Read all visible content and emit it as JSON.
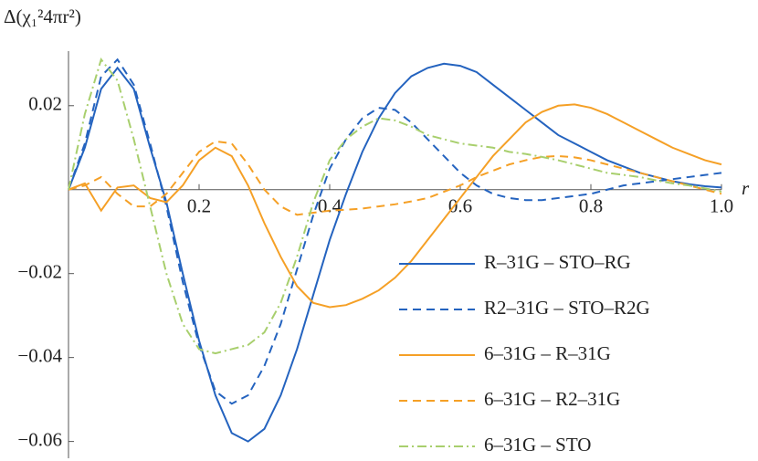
{
  "chart_data": {
    "type": "line",
    "y_label": "Δ(χ₁²4πr²)",
    "x_label": "r",
    "x": [
      0,
      0.025,
      0.05,
      0.075,
      0.1,
      0.125,
      0.15,
      0.175,
      0.2,
      0.225,
      0.25,
      0.275,
      0.3,
      0.325,
      0.35,
      0.375,
      0.4,
      0.425,
      0.45,
      0.475,
      0.5,
      0.525,
      0.55,
      0.575,
      0.6,
      0.625,
      0.65,
      0.675,
      0.7,
      0.725,
      0.75,
      0.775,
      0.8,
      0.825,
      0.85,
      0.875,
      0.9,
      0.925,
      0.95,
      0.975,
      1
    ],
    "series": [
      {
        "name": "R–31G – STO–RG",
        "color": "#2463bf",
        "style": "solid",
        "values": [
          0,
          0.01,
          0.024,
          0.029,
          0.024,
          0.01,
          -0.003,
          -0.02,
          -0.036,
          -0.049,
          -0.058,
          -0.06,
          -0.057,
          -0.049,
          -0.038,
          -0.025,
          -0.012,
          -0.001,
          0.009,
          0.017,
          0.023,
          0.027,
          0.029,
          0.03,
          0.0295,
          0.028,
          0.025,
          0.022,
          0.019,
          0.016,
          0.013,
          0.011,
          0.009,
          0.007,
          0.0055,
          0.004,
          0.003,
          0.002,
          0.0013,
          0.0008,
          0.0005
        ]
      },
      {
        "name": "R2–31G – STO–R2G",
        "color": "#2463bf",
        "style": "dashed",
        "values": [
          0,
          0.011,
          0.027,
          0.031,
          0.025,
          0.011,
          -0.004,
          -0.022,
          -0.037,
          -0.048,
          -0.051,
          -0.049,
          -0.042,
          -0.032,
          -0.019,
          -0.006,
          0.005,
          0.012,
          0.017,
          0.0195,
          0.019,
          0.016,
          0.012,
          0.008,
          0.004,
          0.001,
          -0.001,
          -0.002,
          -0.0025,
          -0.0025,
          -0.002,
          -0.0015,
          -0.001,
          0,
          0.001,
          0.0015,
          0.002,
          0.0025,
          0.003,
          0.0035,
          0.004
        ]
      },
      {
        "name": "6–31G – R–31G",
        "color": "#f5a026",
        "style": "solid",
        "values": [
          0,
          0.0015,
          -0.005,
          0.0005,
          0.001,
          -0.002,
          -0.003,
          0.001,
          0.007,
          0.01,
          0.008,
          0.001,
          -0.008,
          -0.016,
          -0.023,
          -0.027,
          -0.028,
          -0.0275,
          -0.026,
          -0.024,
          -0.021,
          -0.017,
          -0.012,
          -0.007,
          -0.002,
          0.003,
          0.008,
          0.012,
          0.016,
          0.0185,
          0.02,
          0.0203,
          0.0195,
          0.018,
          0.016,
          0.014,
          0.012,
          0.01,
          0.0085,
          0.007,
          0.006
        ]
      },
      {
        "name": "6–31G – R2–31G",
        "color": "#f5a026",
        "style": "dashed",
        "values": [
          0,
          0.001,
          0.003,
          -0.001,
          -0.004,
          -0.004,
          -0.001,
          0.004,
          0.009,
          0.0115,
          0.011,
          0.006,
          0,
          -0.004,
          -0.006,
          -0.0055,
          -0.005,
          -0.0048,
          -0.0045,
          -0.004,
          -0.0035,
          -0.0028,
          -0.002,
          -0.0005,
          0.001,
          0.003,
          0.0045,
          0.006,
          0.007,
          0.0078,
          0.008,
          0.0077,
          0.007,
          0.006,
          0.005,
          0.004,
          0.003,
          0.002,
          0.001,
          0,
          -0.001
        ]
      },
      {
        "name": "6–31G – STO",
        "color": "#a8cf6d",
        "style": "dashdot",
        "values": [
          0,
          0.018,
          0.031,
          0.026,
          0.012,
          -0.004,
          -0.02,
          -0.032,
          -0.038,
          -0.039,
          -0.038,
          -0.037,
          -0.034,
          -0.027,
          -0.016,
          -0.003,
          0.007,
          0.012,
          0.015,
          0.017,
          0.0165,
          0.015,
          0.013,
          0.012,
          0.011,
          0.0105,
          0.01,
          0.009,
          0.0085,
          0.0078,
          0.007,
          0.006,
          0.005,
          0.004,
          0.0035,
          0.003,
          0.0022,
          0.0015,
          0.001,
          0.0003,
          -0.0005
        ]
      }
    ],
    "xlim": [
      0,
      1
    ],
    "ylim": [
      -0.064,
      0.033
    ],
    "xticks": [
      0.2,
      0.4,
      0.6,
      0.8,
      {
        "value": 1,
        "label": "1.0"
      }
    ],
    "yticks": [
      {
        "value": -0.06,
        "label": "−0.06"
      },
      {
        "value": -0.04,
        "label": "−0.04"
      },
      {
        "value": -0.02,
        "label": "−0.02"
      },
      0.02
    ],
    "legend": "lower right"
  }
}
